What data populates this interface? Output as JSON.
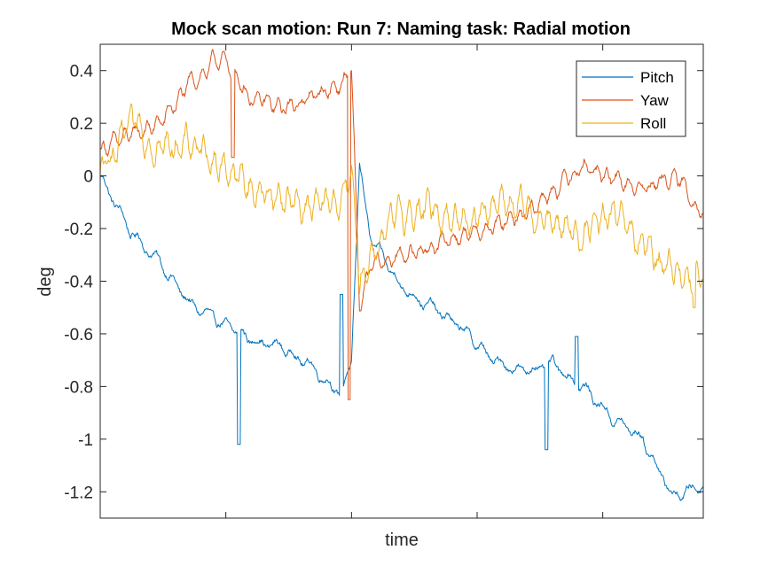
{
  "chart_data": {
    "type": "line",
    "title": "Mock scan motion: Run 7: Naming task: Radial motion",
    "xlabel": "time",
    "ylabel": "deg",
    "ylim": [
      -1.3,
      0.5
    ],
    "yticks": [
      "0.4",
      "0.2",
      "0",
      "-0.2",
      "-0.4",
      "-0.6",
      "-0.8",
      "-1",
      "-1.2"
    ],
    "ytick_values": [
      0.4,
      0.2,
      0,
      -0.2,
      -0.4,
      -0.6,
      -0.8,
      -1,
      -1.2
    ],
    "xlim": [
      0,
      1
    ],
    "x_tick_positions": [
      0.2083,
      0.4167,
      0.625,
      0.8333
    ],
    "x_tick_labels_shown": false,
    "grid": false,
    "legend_position": "top-right",
    "x": [
      0,
      0.05,
      0.1,
      0.15,
      0.2,
      0.25,
      0.3,
      0.35,
      0.4,
      0.4167,
      0.43,
      0.45,
      0.5,
      0.55,
      0.6,
      0.65,
      0.7,
      0.75,
      0.8,
      0.85,
      0.9,
      0.95,
      1.0
    ],
    "series": [
      {
        "name": "Pitch",
        "color": "#0072BD",
        "values": [
          0.0,
          -0.21,
          -0.33,
          -0.49,
          -0.56,
          -0.62,
          -0.65,
          -0.72,
          -0.83,
          -0.7,
          0.03,
          -0.25,
          -0.42,
          -0.5,
          -0.58,
          -0.7,
          -0.74,
          -0.72,
          -0.8,
          -0.92,
          -1.0,
          -1.22,
          -1.17
        ],
        "spikes": [
          [
            0.23,
            -1.02
          ],
          [
            0.4,
            -0.45
          ],
          [
            0.74,
            -1.04
          ],
          [
            0.79,
            -0.61
          ]
        ]
      },
      {
        "name": "Yaw",
        "color": "#D95319",
        "values": [
          0.1,
          0.15,
          0.2,
          0.35,
          0.45,
          0.3,
          0.25,
          0.3,
          0.35,
          0.4,
          -0.5,
          -0.35,
          -0.3,
          -0.27,
          -0.22,
          -0.2,
          -0.15,
          -0.05,
          0.05,
          -0.02,
          -0.05,
          0.0,
          -0.13
        ],
        "spikes": [
          [
            0.22,
            0.07
          ],
          [
            0.4125,
            -0.85
          ]
        ]
      },
      {
        "name": "Roll",
        "color": "#EDB120",
        "values": [
          0.0,
          0.18,
          0.12,
          0.12,
          0.05,
          -0.05,
          -0.08,
          -0.12,
          -0.1,
          0.0,
          -0.42,
          -0.28,
          -0.15,
          -0.12,
          -0.17,
          -0.1,
          -0.12,
          -0.18,
          -0.22,
          -0.15,
          -0.28,
          -0.35,
          -0.38
        ],
        "spikes": [
          [
            0.985,
            -0.5
          ]
        ]
      }
    ]
  }
}
